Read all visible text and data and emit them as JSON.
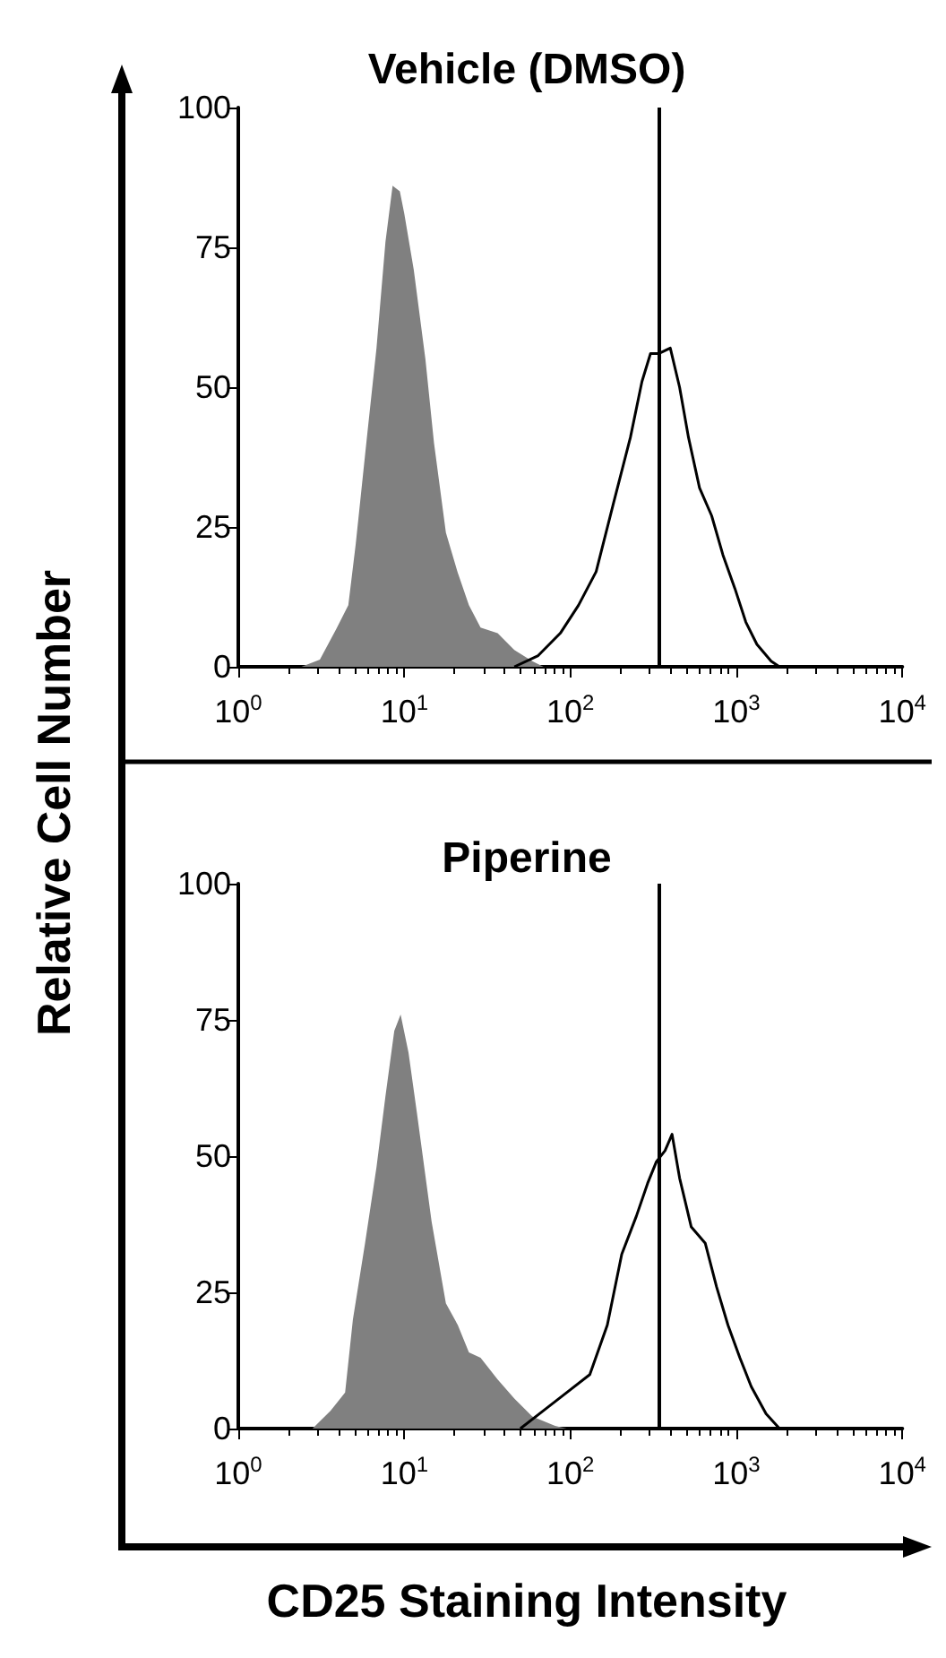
{
  "chart_data": [
    {
      "type": "area",
      "title": "Vehicle (DMSO)",
      "ylabel": "Relative Cell Number",
      "xlim": [
        1,
        10000
      ],
      "xticks": [
        {
          "value": 1,
          "label": "10$^{0}$"
        },
        {
          "value": 10,
          "label": "10$^{1}$"
        },
        {
          "value": 100,
          "label": "10$^{2}$"
        },
        {
          "value": 1000,
          "label": "10$^{3}$"
        },
        {
          "value": 10000,
          "label": "10$^{4}$"
        }
      ],
      "ylim": [
        0,
        100
      ],
      "yticks": [
        0,
        25,
        50,
        75,
        100
      ],
      "log": "x",
      "grid": false,
      "ref_lines": [
        {
          "axis": "x",
          "value": 340,
          "color": "#000000"
        }
      ],
      "series": [
        {
          "type": "area",
          "color": "#808080",
          "x": [
            2.4,
            3.1,
            3.9,
            4.6,
            5.1,
            6.0,
            6.8,
            7.7,
            8.5,
            9.4,
            10,
            11.4,
            13.4,
            15.1,
            17.8,
            20.9,
            24.5,
            28.8,
            36.5,
            46,
            59,
            69
          ],
          "values": [
            0,
            1.3,
            6.8,
            11,
            22,
            42,
            57,
            76,
            86,
            85,
            81,
            71,
            55,
            40,
            24,
            17,
            11,
            7,
            6,
            3,
            1,
            0
          ]
        },
        {
          "type": "line",
          "color": "#000000",
          "x": [
            46,
            64,
            87,
            112,
            143,
            181,
            230,
            270,
            304,
            340,
            400,
            455,
            515,
            600,
            710,
            830,
            980,
            1140,
            1330,
            1620,
            1820
          ],
          "values": [
            0,
            2,
            6,
            11,
            17,
            29,
            41,
            51,
            56,
            56,
            57,
            50,
            41,
            32,
            27,
            20,
            14,
            8,
            4,
            1,
            0
          ]
        }
      ]
    },
    {
      "type": "area",
      "title": "Piperine",
      "xlabel": "CD25 Staining Intensity",
      "xlim": [
        1,
        10000
      ],
      "xticks": [
        {
          "value": 1,
          "label": "10$^{0}$"
        },
        {
          "value": 10,
          "label": "10$^{1}$"
        },
        {
          "value": 100,
          "label": "10$^{2}$"
        },
        {
          "value": 1000,
          "label": "10$^{3}$"
        },
        {
          "value": 10000,
          "label": "10$^{4}$"
        }
      ],
      "ylim": [
        0,
        100
      ],
      "yticks": [
        0,
        25,
        50,
        75,
        100
      ],
      "log": "x",
      "grid": false,
      "ref_lines": [
        {
          "axis": "x",
          "value": 340,
          "color": "#000000"
        }
      ],
      "series": [
        {
          "type": "area",
          "color": "#808080",
          "x": [
            2.8,
            3.6,
            4.4,
            4.9,
            5.8,
            6.8,
            7.7,
            8.7,
            9.5,
            10.6,
            11.9,
            14.6,
            17.8,
            21,
            24.5,
            28.8,
            36.5,
            46,
            59,
            81,
            95
          ],
          "values": [
            0,
            3.3,
            6.6,
            20,
            34,
            48,
            61,
            73,
            76,
            69,
            58,
            38,
            23,
            19,
            14,
            13,
            9,
            5.5,
            2.2,
            0.5,
            0
          ]
        },
        {
          "type": "line",
          "color": "#000000",
          "x": [
            50,
            69,
            95,
            131,
            167,
            204,
            250,
            292,
            330,
            372,
            410,
            455,
            535,
            650,
            760,
            890,
            1050,
            1230,
            1510,
            1820
          ],
          "values": [
            0,
            3.3,
            6.6,
            9.9,
            19,
            32,
            39,
            45,
            49,
            51,
            54,
            46,
            37,
            34,
            26,
            19,
            13,
            7.7,
            2.7,
            0
          ]
        }
      ]
    }
  ]
}
